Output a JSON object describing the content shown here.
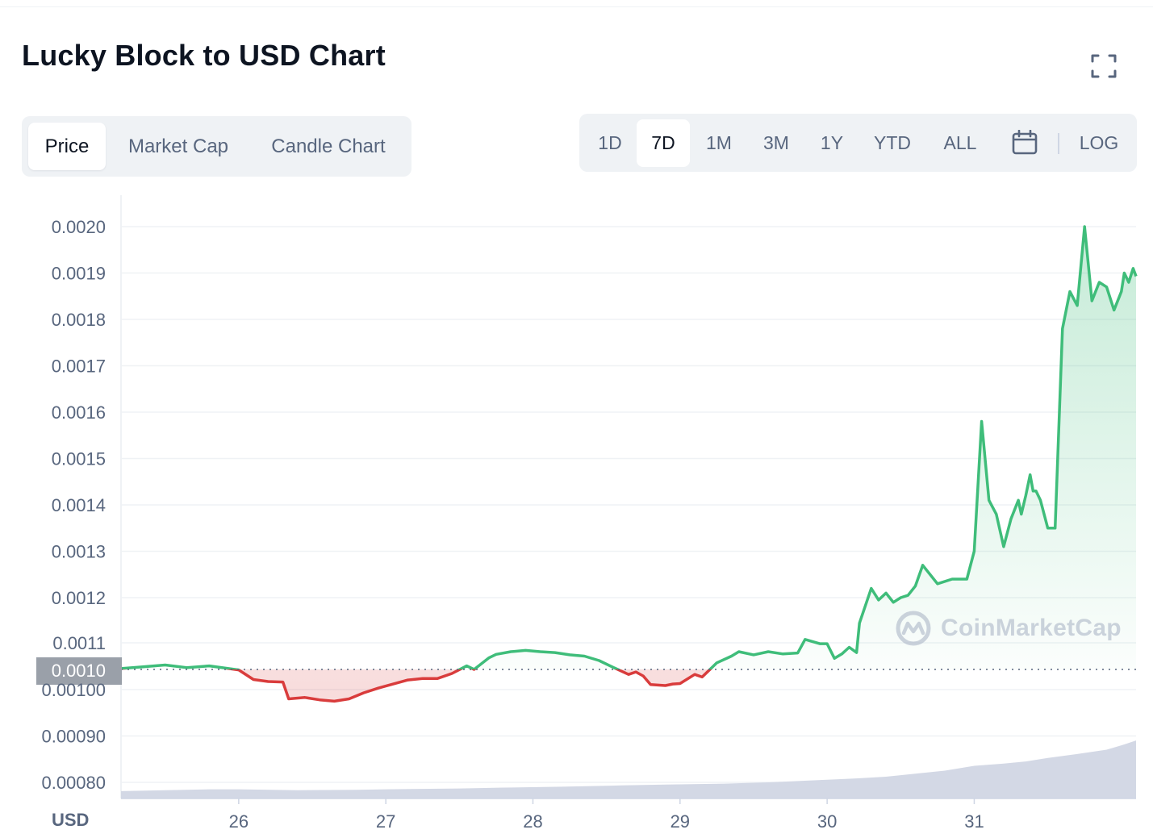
{
  "header": {
    "title": "Lucky Block to USD Chart"
  },
  "icons": {
    "fullscreen": "fullscreen-icon",
    "calendar": "calendar-icon",
    "watermark_logo": "coinmarketcap-logo"
  },
  "tabs": [
    {
      "label": "Price",
      "active": true
    },
    {
      "label": "Market Cap",
      "active": false
    },
    {
      "label": "Candle Chart",
      "active": false
    }
  ],
  "ranges": [
    {
      "label": "1D",
      "active": false
    },
    {
      "label": "7D",
      "active": true
    },
    {
      "label": "1M",
      "active": false
    },
    {
      "label": "3M",
      "active": false
    },
    {
      "label": "1Y",
      "active": false
    },
    {
      "label": "YTD",
      "active": false
    },
    {
      "label": "ALL",
      "active": false
    }
  ],
  "log_label": "LOG",
  "watermark": "CoinMarketCap",
  "colors": {
    "up": "#3fbd7a",
    "down": "#d93c3c",
    "volume": "#d3d8e5",
    "grid": "#eff2f5",
    "text": "#58667e",
    "baseline_tag": "#9aa0a9"
  },
  "chart_data": {
    "type": "line",
    "currency_label": "USD",
    "baseline": {
      "value": 0.00104,
      "label": "0.0010"
    },
    "y_ticks": [
      "0.0020",
      "0.0019",
      "0.0018",
      "0.0017",
      "0.0016",
      "0.0015",
      "0.0014",
      "0.0013",
      "0.0012",
      "0.0011",
      "0.00100",
      "0.00090",
      "0.00080"
    ],
    "x_ticks": [
      "26",
      "27",
      "28",
      "29",
      "30",
      "31"
    ],
    "x_range": [
      25.2,
      32.1
    ],
    "grid": true,
    "legend": "none",
    "series": [
      {
        "x": [
          25.2,
          25.35,
          25.5,
          25.65,
          25.8,
          26.0,
          26.1,
          26.2,
          26.3,
          26.34,
          26.45,
          26.55,
          26.65,
          26.75,
          26.85,
          26.95,
          27.05,
          27.15,
          27.25,
          27.35,
          27.45,
          27.55,
          27.6,
          27.65,
          27.7,
          27.75,
          27.85,
          27.95,
          28.05,
          28.15,
          28.25,
          28.35,
          28.45,
          28.55,
          28.65,
          28.7,
          28.75,
          28.8,
          28.9,
          28.95,
          29.0,
          29.1,
          29.15,
          29.25,
          29.35,
          29.4,
          29.5,
          29.6,
          29.7,
          29.8,
          29.85,
          29.95,
          30.0,
          30.05,
          30.1,
          30.15,
          30.2,
          30.22,
          30.3,
          30.35,
          30.4,
          30.45,
          30.5,
          30.55,
          30.6,
          30.65,
          30.75,
          30.85,
          30.95,
          31.0,
          31.05,
          31.1,
          31.15,
          31.2,
          31.25,
          31.3,
          31.32,
          31.35,
          31.38,
          31.4,
          31.42,
          31.45,
          31.5,
          31.55,
          31.6,
          31.65,
          31.7,
          31.75,
          31.8,
          31.85,
          31.9,
          31.95,
          32.0,
          32.02,
          32.05,
          32.08,
          32.1
        ],
        "y": [
          0.001042,
          0.001046,
          0.00105,
          0.001044,
          0.001048,
          0.001039,
          0.00102,
          0.001016,
          0.001015,
          0.00098,
          0.000983,
          0.000978,
          0.000975,
          0.00098,
          0.000993,
          0.001003,
          0.001011,
          0.001019,
          0.001022,
          0.001022,
          0.001032,
          0.001048,
          0.00104,
          0.001053,
          0.001066,
          0.001074,
          0.00108,
          0.001083,
          0.00108,
          0.001078,
          0.001073,
          0.00107,
          0.00106,
          0.001044,
          0.00103,
          0.001035,
          0.001027,
          0.00101,
          0.001008,
          0.001011,
          0.001012,
          0.00103,
          0.001025,
          0.001055,
          0.00107,
          0.00108,
          0.001073,
          0.00108,
          0.001075,
          0.001077,
          0.00111,
          0.001098,
          0.001098,
          0.001065,
          0.001075,
          0.00109,
          0.001078,
          0.001145,
          0.00122,
          0.001195,
          0.00121,
          0.00119,
          0.0012,
          0.001205,
          0.001225,
          0.00127,
          0.00123,
          0.00124,
          0.00124,
          0.0013,
          0.00158,
          0.00141,
          0.00138,
          0.00131,
          0.00137,
          0.00141,
          0.00138,
          0.00142,
          0.001465,
          0.00143,
          0.00143,
          0.00141,
          0.00135,
          0.00135,
          0.00178,
          0.00186,
          0.00183,
          0.002,
          0.00184,
          0.00188,
          0.00187,
          0.00182,
          0.00186,
          0.0019,
          0.00188,
          0.00191,
          0.001893
        ]
      }
    ],
    "volume": {
      "x": [
        25.2,
        25.5,
        25.8,
        26.0,
        26.4,
        26.8,
        27.0,
        27.5,
        27.8,
        28.2,
        28.6,
        28.9,
        29.3,
        29.6,
        29.8,
        30.0,
        30.2,
        30.4,
        30.6,
        30.8,
        31.0,
        31.2,
        31.35,
        31.5,
        31.7,
        31.9,
        32.0,
        32.1
      ],
      "y": [
        0.077,
        0.079,
        0.081,
        0.081,
        0.079,
        0.08,
        0.081,
        0.083,
        0.085,
        0.087,
        0.09,
        0.092,
        0.094,
        0.097,
        0.1,
        0.103,
        0.106,
        0.11,
        0.117,
        0.124,
        0.135,
        0.14,
        0.145,
        0.153,
        0.162,
        0.172,
        0.182,
        0.193
      ]
    }
  }
}
